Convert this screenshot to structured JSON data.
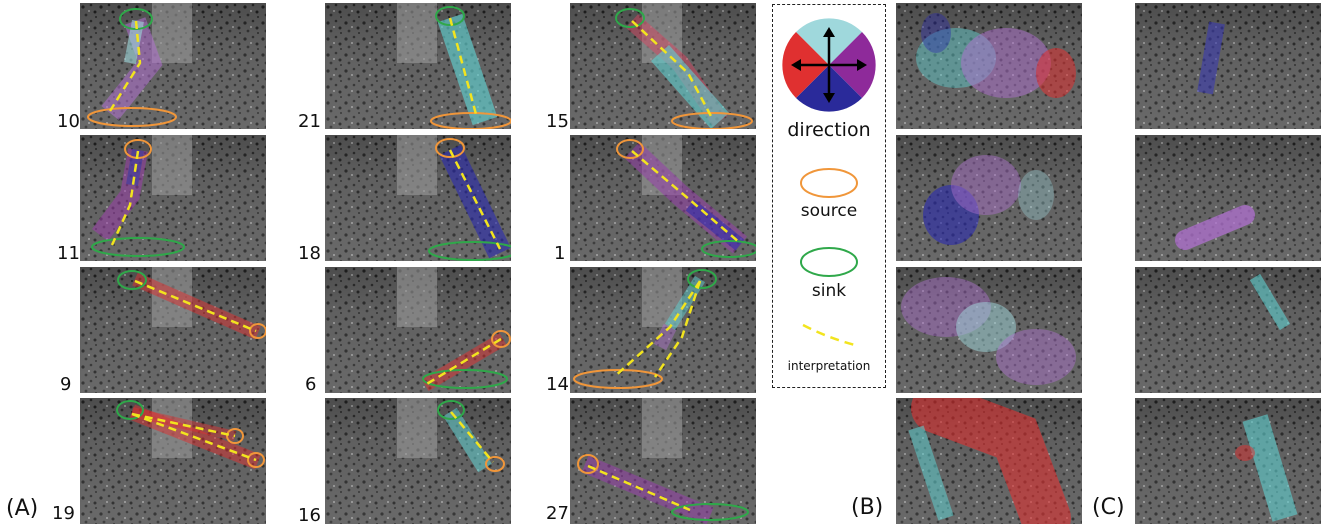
{
  "panel_labels": {
    "a": "(A)",
    "b": "(B)",
    "c": "(C)"
  },
  "panel_a_numbers": [
    "10",
    "21",
    "15",
    "11",
    "18",
    "1",
    "9",
    "6",
    "14",
    "19",
    "16",
    "27"
  ],
  "legend": {
    "direction": "direction",
    "source": "source",
    "sink": "sink",
    "interpretation": "interpretation"
  },
  "colors": {
    "up": "#9fd8dc",
    "right": "#8e2a9a",
    "down": "#2a2a9a",
    "left": "#e03030",
    "source": "#f0963a",
    "sink": "#2fa84a",
    "interpretation": "#f2e41e"
  }
}
